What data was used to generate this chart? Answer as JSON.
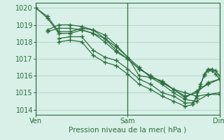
{
  "bg_color": "#d8f0e8",
  "grid_color": "#aaccbb",
  "line_color": "#2d6e3e",
  "marker": "+",
  "markersize": 4,
  "linewidth": 0.9,
  "xlabel": "Pression niveau de la mer( hPa )",
  "yticks": [
    1014,
    1015,
    1016,
    1017,
    1018,
    1019,
    1020
  ],
  "ylim": [
    1013.7,
    1020.3
  ],
  "xlim": [
    0,
    48
  ],
  "xtick_positions": [
    0,
    24,
    48
  ],
  "xtick_labels": [
    "Ven",
    "Sam",
    "Dim"
  ],
  "vlines": [
    0,
    24,
    48
  ],
  "series": [
    [
      0,
      1020.0,
      3,
      1019.5,
      6,
      1018.6,
      9,
      1018.6,
      12,
      1018.8,
      15,
      1018.7,
      18,
      1018.4,
      21,
      1017.8,
      24,
      1017.1,
      27,
      1016.0,
      30,
      1015.9,
      33,
      1015.7,
      36,
      1015.2,
      39,
      1015.0,
      42,
      1014.8,
      45,
      1014.9,
      48,
      1014.9
    ],
    [
      0,
      1020.0,
      3,
      1019.4,
      6,
      1018.5,
      9,
      1018.5,
      12,
      1018.7,
      15,
      1018.5,
      18,
      1018.2,
      21,
      1017.7,
      24,
      1017.1,
      27,
      1016.5,
      30,
      1015.9,
      33,
      1015.5,
      36,
      1015.0,
      39,
      1014.6,
      42,
      1014.5,
      45,
      1014.9,
      48,
      1015.0
    ],
    [
      3,
      1018.7,
      6,
      1019.0,
      9,
      1019.0,
      12,
      1018.9,
      15,
      1018.7,
      18,
      1018.2,
      21,
      1017.5,
      24,
      1017.0,
      27,
      1016.4,
      30,
      1016.0,
      33,
      1015.6,
      36,
      1015.2,
      39,
      1014.8,
      42,
      1015.0,
      45,
      1015.6,
      48,
      1015.8
    ],
    [
      3,
      1018.6,
      6,
      1018.8,
      9,
      1018.8,
      12,
      1018.7,
      15,
      1018.5,
      18,
      1018.0,
      21,
      1017.4,
      24,
      1017.0,
      27,
      1016.4,
      30,
      1016.0,
      33,
      1015.6,
      36,
      1015.2,
      39,
      1014.7,
      42,
      1015.1,
      45,
      1015.5,
      48,
      1015.8
    ],
    [
      6,
      1018.2,
      9,
      1018.3,
      12,
      1018.3,
      15,
      1017.5,
      18,
      1017.1,
      21,
      1016.9,
      24,
      1016.4,
      27,
      1015.8,
      30,
      1015.5,
      33,
      1015.0,
      36,
      1014.8,
      39,
      1014.4,
      41,
      1014.4,
      42,
      1014.7,
      43,
      1015.4,
      44,
      1016.1,
      45,
      1016.4,
      46,
      1016.4,
      47,
      1016.3,
      48,
      1016.0
    ],
    [
      6,
      1018.0,
      9,
      1018.1,
      12,
      1018.0,
      15,
      1017.2,
      18,
      1016.8,
      21,
      1016.6,
      24,
      1016.1,
      27,
      1015.5,
      30,
      1015.2,
      33,
      1014.8,
      36,
      1014.5,
      39,
      1014.2,
      41,
      1014.3,
      42,
      1014.8,
      43,
      1015.5,
      44,
      1016.0,
      45,
      1016.3,
      46,
      1016.3,
      47,
      1016.1,
      48,
      1015.8
    ]
  ]
}
